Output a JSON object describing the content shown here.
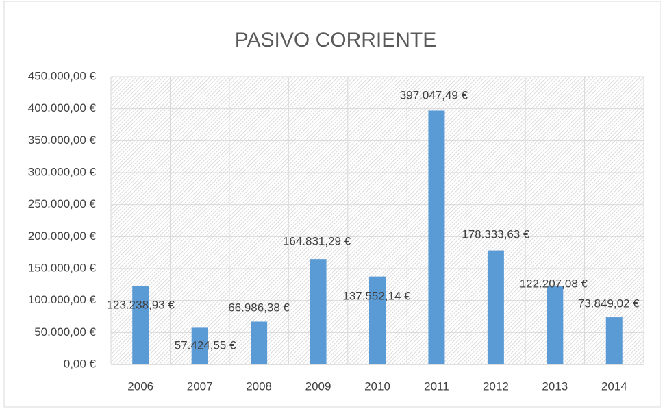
{
  "chart_data": {
    "type": "bar",
    "title": "PASIVO CORRIENTE",
    "categories": [
      "2006",
      "2007",
      "2008",
      "2009",
      "2010",
      "2011",
      "2012",
      "2013",
      "2014"
    ],
    "values": [
      123238.93,
      57424.55,
      66986.38,
      164831.29,
      137552.14,
      397047.49,
      178333.63,
      122207.08,
      73849.02
    ],
    "value_labels": [
      "123.238,93 €",
      "57.424,55 €",
      "66.986,38 €",
      "164.831,29 €",
      "137.552,14 €",
      "397.047,49 €",
      "178.333,63 €",
      "122.207,08 €",
      "73.849,02 €"
    ],
    "color": "#5b9bd5",
    "ylim": [
      0,
      450000
    ],
    "yticks": [
      {
        "value": 0,
        "label": "0,00 €"
      },
      {
        "value": 50000,
        "label": "50.000,00 €"
      },
      {
        "value": 100000,
        "label": "100.000,00 €"
      },
      {
        "value": 150000,
        "label": "150.000,00 €"
      },
      {
        "value": 200000,
        "label": "200.000,00 €"
      },
      {
        "value": 250000,
        "label": "250.000,00 €"
      },
      {
        "value": 300000,
        "label": "300.000,00 €"
      },
      {
        "value": 350000,
        "label": "350.000,00 €"
      },
      {
        "value": 400000,
        "label": "400.000,00 €"
      },
      {
        "value": 450000,
        "label": "450.000,00 €"
      }
    ],
    "grid": true
  }
}
